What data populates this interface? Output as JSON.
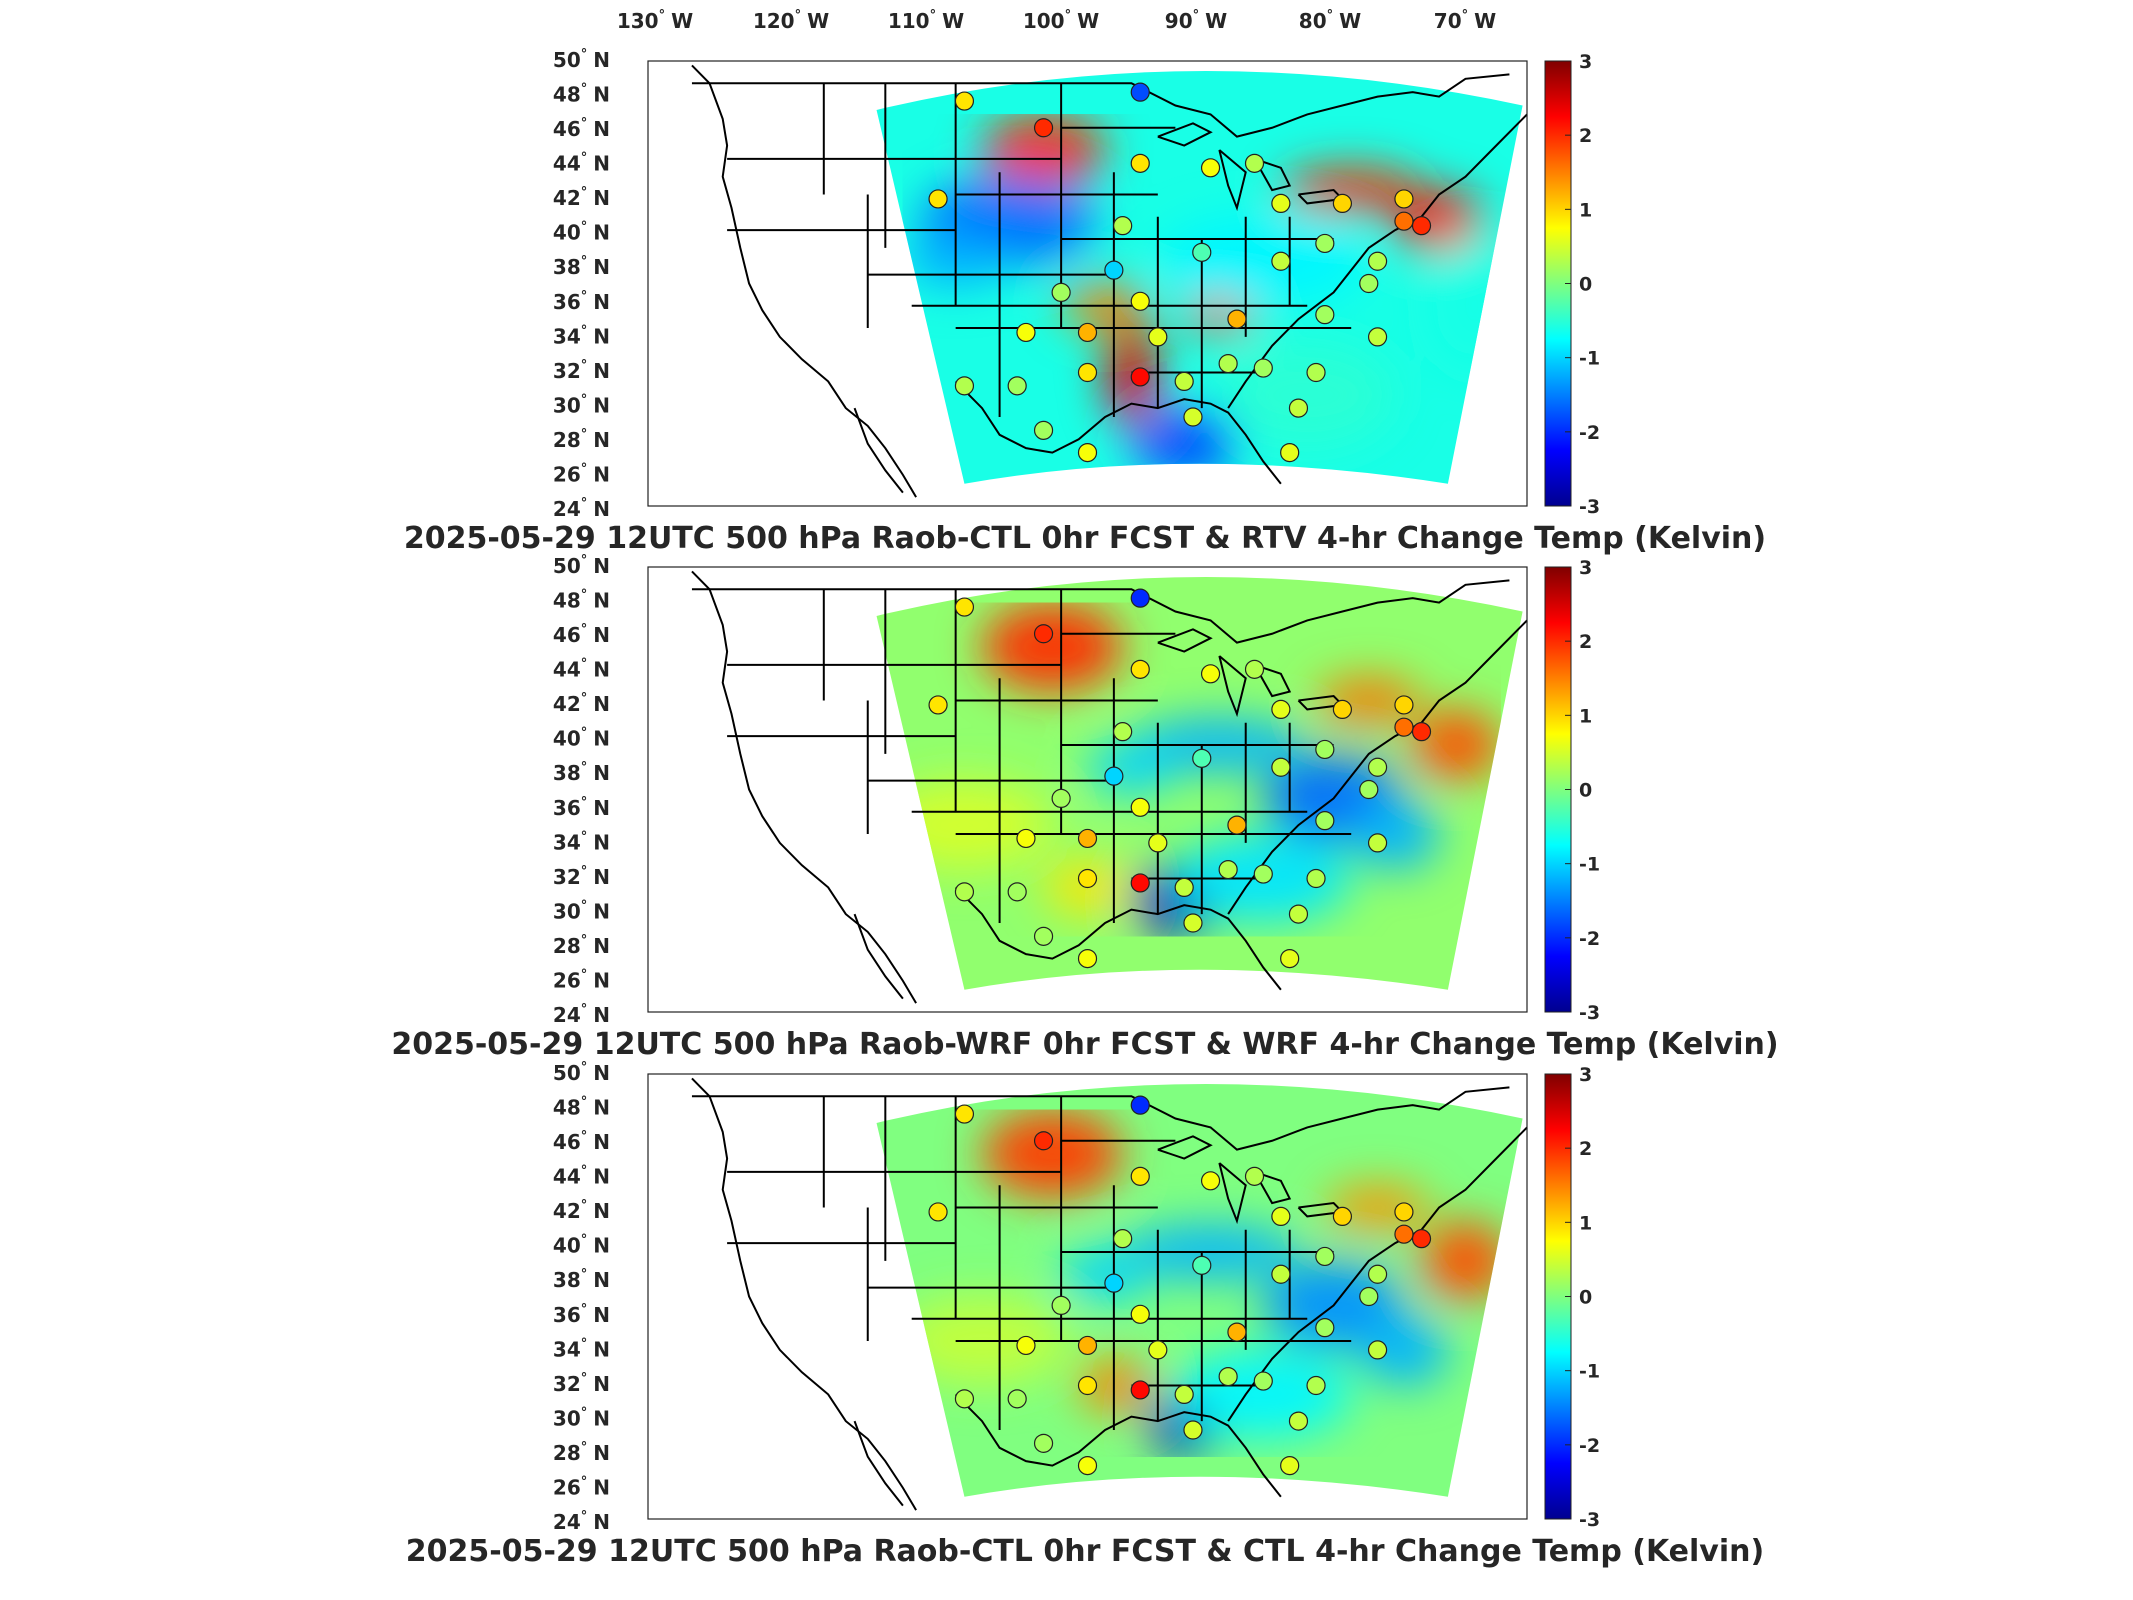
{
  "lon_labels": [
    "130",
    "120",
    "110",
    "100",
    "90",
    "80",
    "70"
  ],
  "lon_hemisphere": "W",
  "lat_labels": [
    "50",
    "48",
    "46",
    "44",
    "42",
    "40",
    "38",
    "36",
    "34",
    "32",
    "30",
    "28",
    "26",
    "24"
  ],
  "lat_hemisphere": "N",
  "degree_symbol": "°",
  "colorbar": {
    "ticks": [
      "3",
      "2",
      "1",
      "0",
      "-1",
      "-2",
      "-3"
    ],
    "min": -3,
    "max": 3,
    "colormap": "jet"
  },
  "panels": [
    {
      "title": "2025-05-29 12UTC 500 hPa Raob-CTL 0hr FCST & RTV 4-hr Change Temp (Kelvin)"
    },
    {
      "title": "2025-05-29 12UTC 500 hPa Raob-WRF 0hr FCST & WRF 4-hr Change Temp (Kelvin)"
    },
    {
      "title": "2025-05-29 12UTC 500 hPa Raob-CTL 0hr FCST & CTL 4-hr Change Temp (Kelvin)"
    }
  ],
  "colors": {
    "jet_dark_blue": "#00008f",
    "jet_blue": "#0050ff",
    "jet_cyan": "#00ffff",
    "jet_green": "#7fff7f",
    "jet_yellow": "#ffff00",
    "jet_red": "#ff2000",
    "jet_dark_red": "#800000",
    "coast_border": "#000000"
  }
}
